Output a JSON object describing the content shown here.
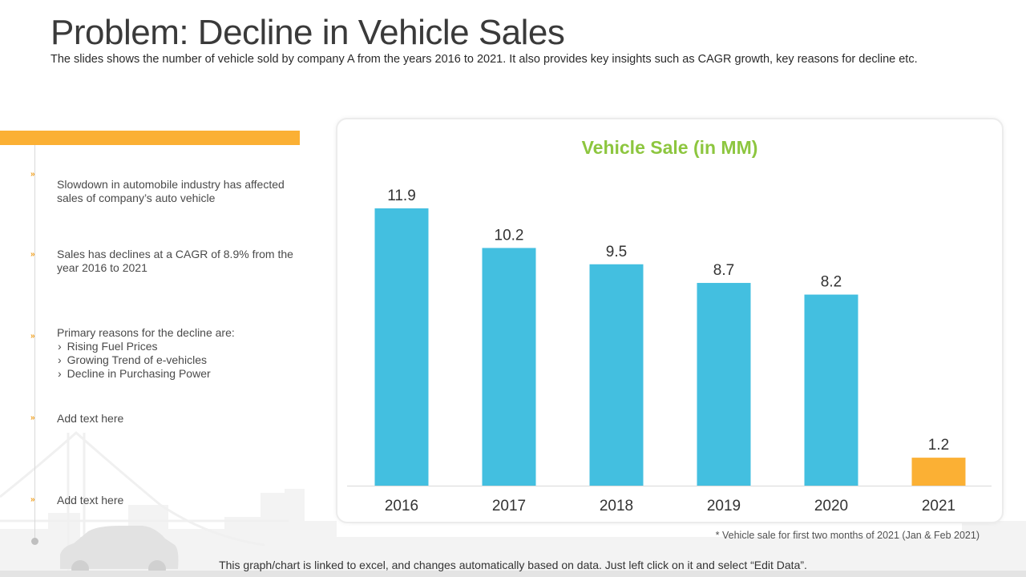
{
  "header": {
    "title": "Problem: Decline in Vehicle Sales",
    "subtitle": "The slides shows the number of vehicle sold by company A from the years 2016 to 2021.  It also provides key insights such as CAGR growth, key reasons for decline etc."
  },
  "points": [
    {
      "text": "Slowdown in automobile industry has affected sales of company’s auto vehicle"
    },
    {
      "text": "Sales has declines at a CAGR of 8.9% from  the year 2016 to 2021"
    },
    {
      "text": "Primary reasons for the decline are:",
      "sub": [
        "Rising Fuel Prices",
        "Growing Trend of e-vehicles",
        "Decline in Purchasing Power"
      ]
    },
    {
      "text": "Add text here"
    },
    {
      "text": "Add text here"
    }
  ],
  "bullet_glyph": "»",
  "chart_data": {
    "type": "bar",
    "title": "Vehicle Sale (in MM)",
    "categories": [
      "2016",
      "2017",
      "2018",
      "2019",
      "2020",
      "2021"
    ],
    "values": [
      11.9,
      10.2,
      9.5,
      8.7,
      8.2,
      1.2
    ],
    "data_labels": [
      "11.9",
      "10.2",
      "9.5",
      "8.7",
      "8.2",
      "1.2"
    ],
    "colors": [
      "#43bfe0",
      "#43bfe0",
      "#43bfe0",
      "#43bfe0",
      "#43bfe0",
      "#fbb034"
    ],
    "ylim": [
      0,
      11.9
    ],
    "grid": false,
    "legend": "none"
  },
  "footnote": "* Vehicle sale for first two months of 2021 (Jan & Feb 2021)",
  "bottom_note": "This graph/chart is linked to excel, and changes automatically based on data.  Just left click on it and select “Edit Data”.",
  "colors": {
    "accent_orange": "#fbb034",
    "bar_blue": "#43bfe0",
    "chart_title_green": "#8dc63f"
  }
}
